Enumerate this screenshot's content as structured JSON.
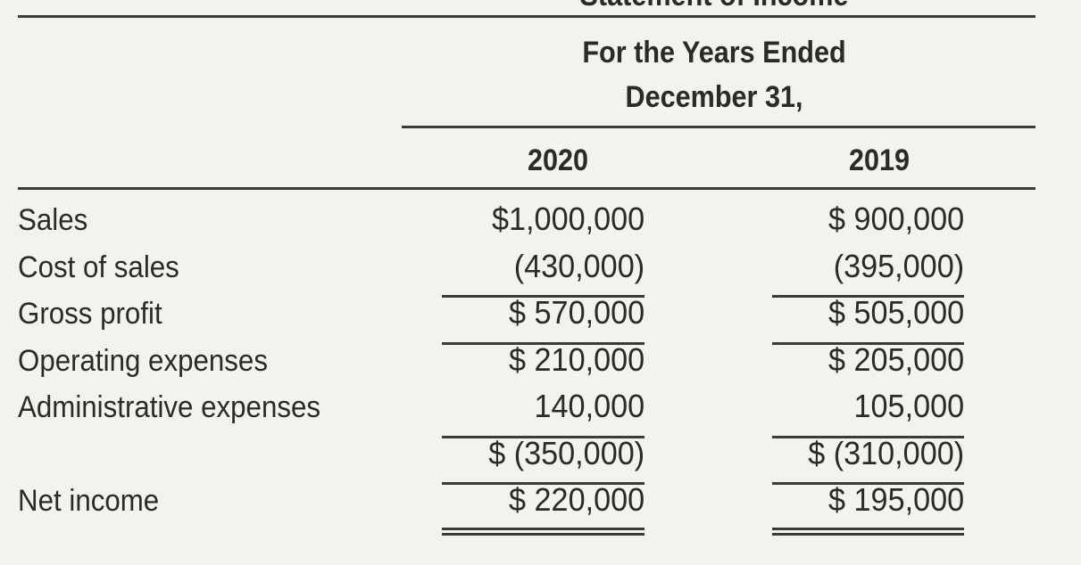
{
  "header": {
    "title": "Statement of Income",
    "period": [
      "For the Years Ended",
      "December 31,"
    ]
  },
  "table": {
    "columns": [
      "2020",
      "2019"
    ],
    "rows": [
      {
        "label": "Sales",
        "values": [
          "$1,000,000",
          "$ 900,000"
        ]
      },
      {
        "label": "Cost of sales",
        "values": [
          "(430,000)",
          "(395,000)"
        ]
      },
      {
        "label": "Gross profit",
        "values": [
          "$ 570,000",
          "$ 505,000"
        ]
      },
      {
        "label": "Operating expenses",
        "values": [
          "$ 210,000",
          "$ 205,000"
        ]
      },
      {
        "label": "Administrative expenses",
        "values": [
          "140,000",
          "105,000"
        ]
      },
      {
        "values": [
          "$ (350,000)",
          "$ (310,000)"
        ]
      },
      {
        "label": "Net income",
        "values": [
          "$ 220,000",
          "$ 195,000"
        ]
      }
    ]
  }
}
